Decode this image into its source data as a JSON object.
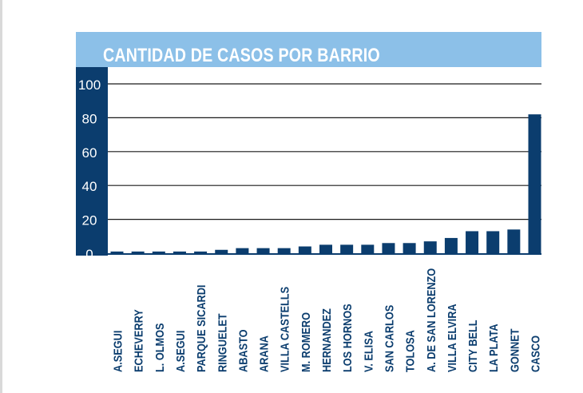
{
  "chart_data": {
    "type": "bar",
    "title": "CANTIDAD DE CASOS POR BARRIO",
    "categories": [
      "A.SEGUI",
      "ECHEVERRY",
      "L. OLMOS",
      "A.SEGUI",
      "PARQUE SICARDI",
      "RINGUELET",
      "ABASTO",
      "ARANA",
      "VILLA CASTELLS",
      "M. ROMERO",
      "HERNANDEZ",
      "LOS HORNOS",
      "V. ELISA",
      "SAN CARLOS",
      "TOLOSA",
      "A. DE SAN LORENZO",
      "VILLA ELVIRA",
      "CITY BELL",
      "LA PLATA",
      "GONNET",
      "CASCO"
    ],
    "values": [
      1,
      1,
      1,
      1,
      1,
      2,
      3,
      3,
      3,
      4,
      5,
      5,
      5,
      6,
      6,
      7,
      9,
      13,
      13,
      14,
      82
    ],
    "yticks": [
      0,
      20,
      40,
      60,
      80,
      100
    ],
    "ylim": [
      0,
      100
    ],
    "grid": true,
    "colors": {
      "bar": "#0b3d6e",
      "title_band": "#8cc0e8",
      "axis_band": "#0b3d6e",
      "grid": "#1a1a1a",
      "tick_text": "#ffffff",
      "category_text": "#0b3d6e"
    }
  }
}
